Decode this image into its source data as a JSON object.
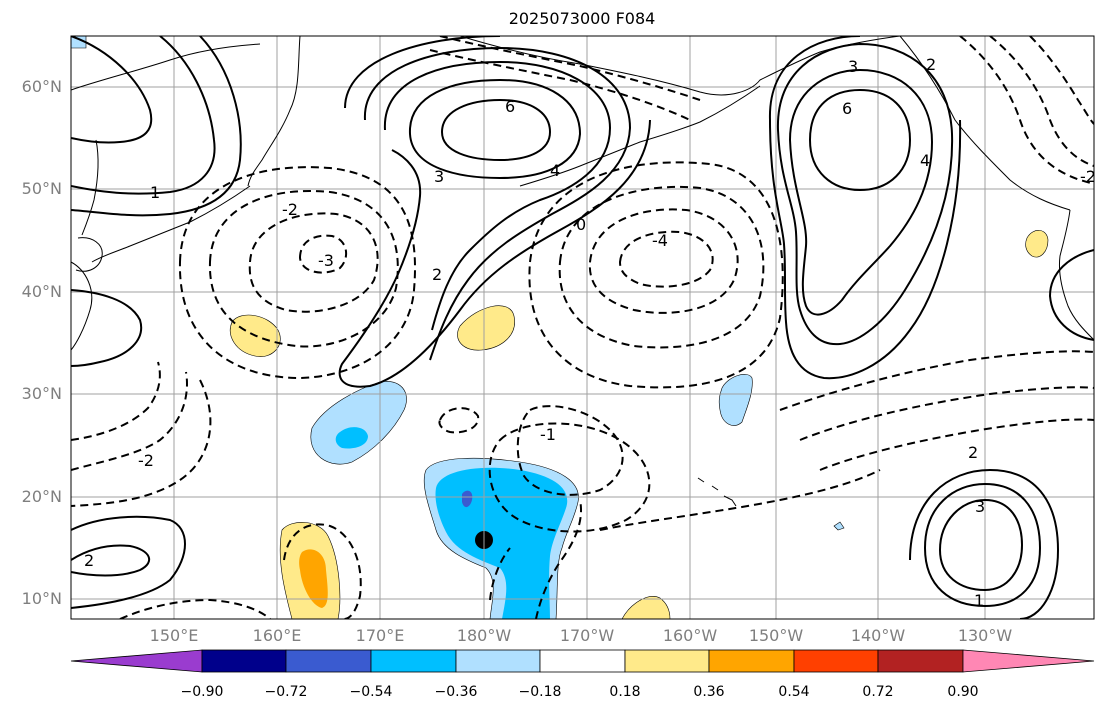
{
  "title": "2025073000 F084",
  "map": {
    "lat_labels": [
      "60°N",
      "50°N",
      "40°N",
      "30°N",
      "20°N",
      "10°N"
    ],
    "lon_labels": [
      "150°E",
      "160°E",
      "170°E",
      "180°W",
      "170°W",
      "160°W",
      "150°W",
      "140°W",
      "130°W"
    ],
    "gridline_color": "#a0a0a0",
    "coast_color": "#000000",
    "contour_labels": [
      "6",
      "4",
      "3",
      "2",
      "0",
      "-2",
      "-3",
      "-4",
      "1",
      "-1",
      "6",
      "4",
      "3",
      "2",
      "-2",
      "2",
      "3",
      "1",
      "2",
      "-2"
    ],
    "marker": "storm-center-dot"
  },
  "colorbar": {
    "ticks": [
      "−0.90",
      "−0.72",
      "−0.54",
      "−0.36",
      "−0.18",
      "0.18",
      "0.36",
      "0.54",
      "0.72",
      "0.90"
    ],
    "colors": [
      "#9a3ccf",
      "#00008b",
      "#3a5bd0",
      "#00bfff",
      "#b0e0ff",
      "#ffffff",
      "#ffea8a",
      "#ffa500",
      "#ff4000",
      "#b22222",
      "#ff87b4"
    ]
  }
}
